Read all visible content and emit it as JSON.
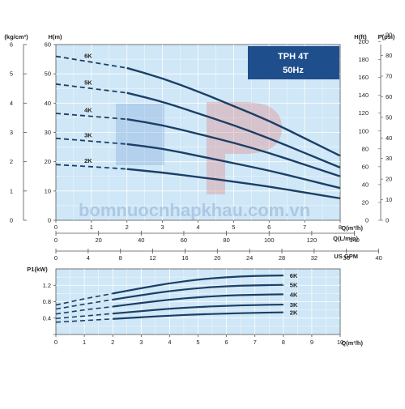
{
  "badge": {
    "model": "TPH 4T",
    "freq": "50Hz",
    "color": "#1f4e8c"
  },
  "watermark": "bomnuocnhapkhau.com.vn",
  "colors": {
    "plot_bg": "#cfe7f6",
    "grid": "#ffffff",
    "curve": "#1b3f66",
    "frame": "#555555"
  },
  "chart_data": [
    {
      "type": "line",
      "x_unit_label": "Q(m³/h)",
      "xlim": [
        0,
        8
      ],
      "x_ticks": [
        0,
        1,
        2,
        3,
        4,
        5,
        6,
        7,
        8
      ],
      "left_axis_label": "H(m)",
      "ylim": [
        0,
        60
      ],
      "y_ticks": [
        0,
        10,
        20,
        30,
        40,
        50,
        60
      ],
      "outer_left_axis": {
        "label": "(kg/cm²)",
        "ticks": [
          0,
          1,
          2,
          3,
          4,
          5,
          6
        ],
        "per_h_meter": 0.1
      },
      "right_axes": [
        {
          "label": "H(ft)",
          "ticks": [
            0,
            20,
            40,
            60,
            80,
            100,
            120,
            140,
            160,
            180,
            200
          ]
        },
        {
          "label": "P(psi)",
          "ticks": [
            0,
            10,
            20,
            30,
            40,
            50,
            60,
            70,
            80,
            90
          ]
        }
      ],
      "secondary_x_axes": [
        {
          "label": "Q(L/min)",
          "ticks": [
            0,
            20,
            40,
            60,
            80,
            100,
            120,
            140
          ],
          "per_m3h": 16.667
        },
        {
          "label": "US GPM",
          "ticks": [
            0,
            4,
            8,
            12,
            16,
            20,
            24,
            28,
            32,
            36,
            40
          ],
          "per_m3h": 4.403
        }
      ],
      "series": [
        {
          "name": "6K",
          "dashed": {
            "x": [
              0,
              1,
              2
            ],
            "y": [
              56,
              54,
              52
            ]
          },
          "solid": {
            "x": [
              2,
              3,
              4,
              5,
              6,
              7,
              8
            ],
            "y": [
              52,
              48.5,
              44,
              39,
              34,
              28,
              22
            ]
          }
        },
        {
          "name": "5K",
          "dashed": {
            "x": [
              0,
              1,
              2
            ],
            "y": [
              46.5,
              45,
              43.5
            ]
          },
          "solid": {
            "x": [
              2,
              3,
              4,
              5,
              6,
              7,
              8
            ],
            "y": [
              43.5,
              40.5,
              36.5,
              32.5,
              28,
              23,
              18
            ]
          }
        },
        {
          "name": "4K",
          "dashed": {
            "x": [
              0,
              1,
              2
            ],
            "y": [
              36.5,
              35.5,
              34.5
            ]
          },
          "solid": {
            "x": [
              2,
              3,
              4,
              5,
              6,
              7,
              8
            ],
            "y": [
              34.5,
              32.5,
              29.5,
              26.5,
              23,
              19,
              15
            ]
          }
        },
        {
          "name": "3K",
          "dashed": {
            "x": [
              0,
              1,
              2
            ],
            "y": [
              28,
              27,
              26
            ]
          },
          "solid": {
            "x": [
              2,
              3,
              4,
              5,
              6,
              7,
              8
            ],
            "y": [
              26,
              24.5,
              22,
              19.5,
              17,
              14,
              11
            ]
          }
        },
        {
          "name": "2K",
          "dashed": {
            "x": [
              0,
              1,
              2
            ],
            "y": [
              19,
              18.3,
              17.5
            ]
          },
          "solid": {
            "x": [
              2,
              3,
              4,
              5,
              6,
              7,
              8
            ],
            "y": [
              17.5,
              16.3,
              14.8,
              13.2,
              11.5,
              9.5,
              7.5
            ]
          }
        }
      ]
    },
    {
      "type": "line",
      "x_unit_label": "Q(m³/h)",
      "xlim": [
        0,
        10
      ],
      "x_ticks": [
        0,
        1,
        2,
        3,
        4,
        5,
        6,
        7,
        8,
        9,
        10
      ],
      "left_axis_label": "P1(kW)",
      "ylim": [
        0,
        1.6
      ],
      "y_ticks": [
        0,
        0.4,
        0.8,
        1.2
      ],
      "series": [
        {
          "name": "6K",
          "dashed": {
            "x": [
              0,
              1,
              2
            ],
            "y": [
              0.72,
              0.87,
              1.0
            ]
          },
          "solid": {
            "x": [
              2,
              3,
              4,
              5,
              6,
              7,
              8
            ],
            "y": [
              1.0,
              1.13,
              1.25,
              1.34,
              1.4,
              1.43,
              1.44
            ]
          }
        },
        {
          "name": "5K",
          "dashed": {
            "x": [
              0,
              1,
              2
            ],
            "y": [
              0.62,
              0.74,
              0.85
            ]
          },
          "solid": {
            "x": [
              2,
              3,
              4,
              5,
              6,
              7,
              8
            ],
            "y": [
              0.85,
              0.96,
              1.06,
              1.13,
              1.18,
              1.2,
              1.21
            ]
          }
        },
        {
          "name": "4K",
          "dashed": {
            "x": [
              0,
              1,
              2
            ],
            "y": [
              0.5,
              0.6,
              0.68
            ]
          },
          "solid": {
            "x": [
              2,
              3,
              4,
              5,
              6,
              7,
              8
            ],
            "y": [
              0.68,
              0.77,
              0.85,
              0.91,
              0.95,
              0.97,
              0.98
            ]
          }
        },
        {
          "name": "3K",
          "dashed": {
            "x": [
              0,
              1,
              2
            ],
            "y": [
              0.39,
              0.45,
              0.51
            ]
          },
          "solid": {
            "x": [
              2,
              3,
              4,
              5,
              6,
              7,
              8
            ],
            "y": [
              0.51,
              0.57,
              0.63,
              0.67,
              0.7,
              0.72,
              0.73
            ]
          }
        },
        {
          "name": "2K",
          "dashed": {
            "x": [
              0,
              1,
              2
            ],
            "y": [
              0.3,
              0.34,
              0.38
            ]
          },
          "solid": {
            "x": [
              2,
              3,
              4,
              5,
              6,
              7,
              8
            ],
            "y": [
              0.38,
              0.42,
              0.46,
              0.49,
              0.51,
              0.53,
              0.54
            ]
          }
        }
      ]
    }
  ]
}
